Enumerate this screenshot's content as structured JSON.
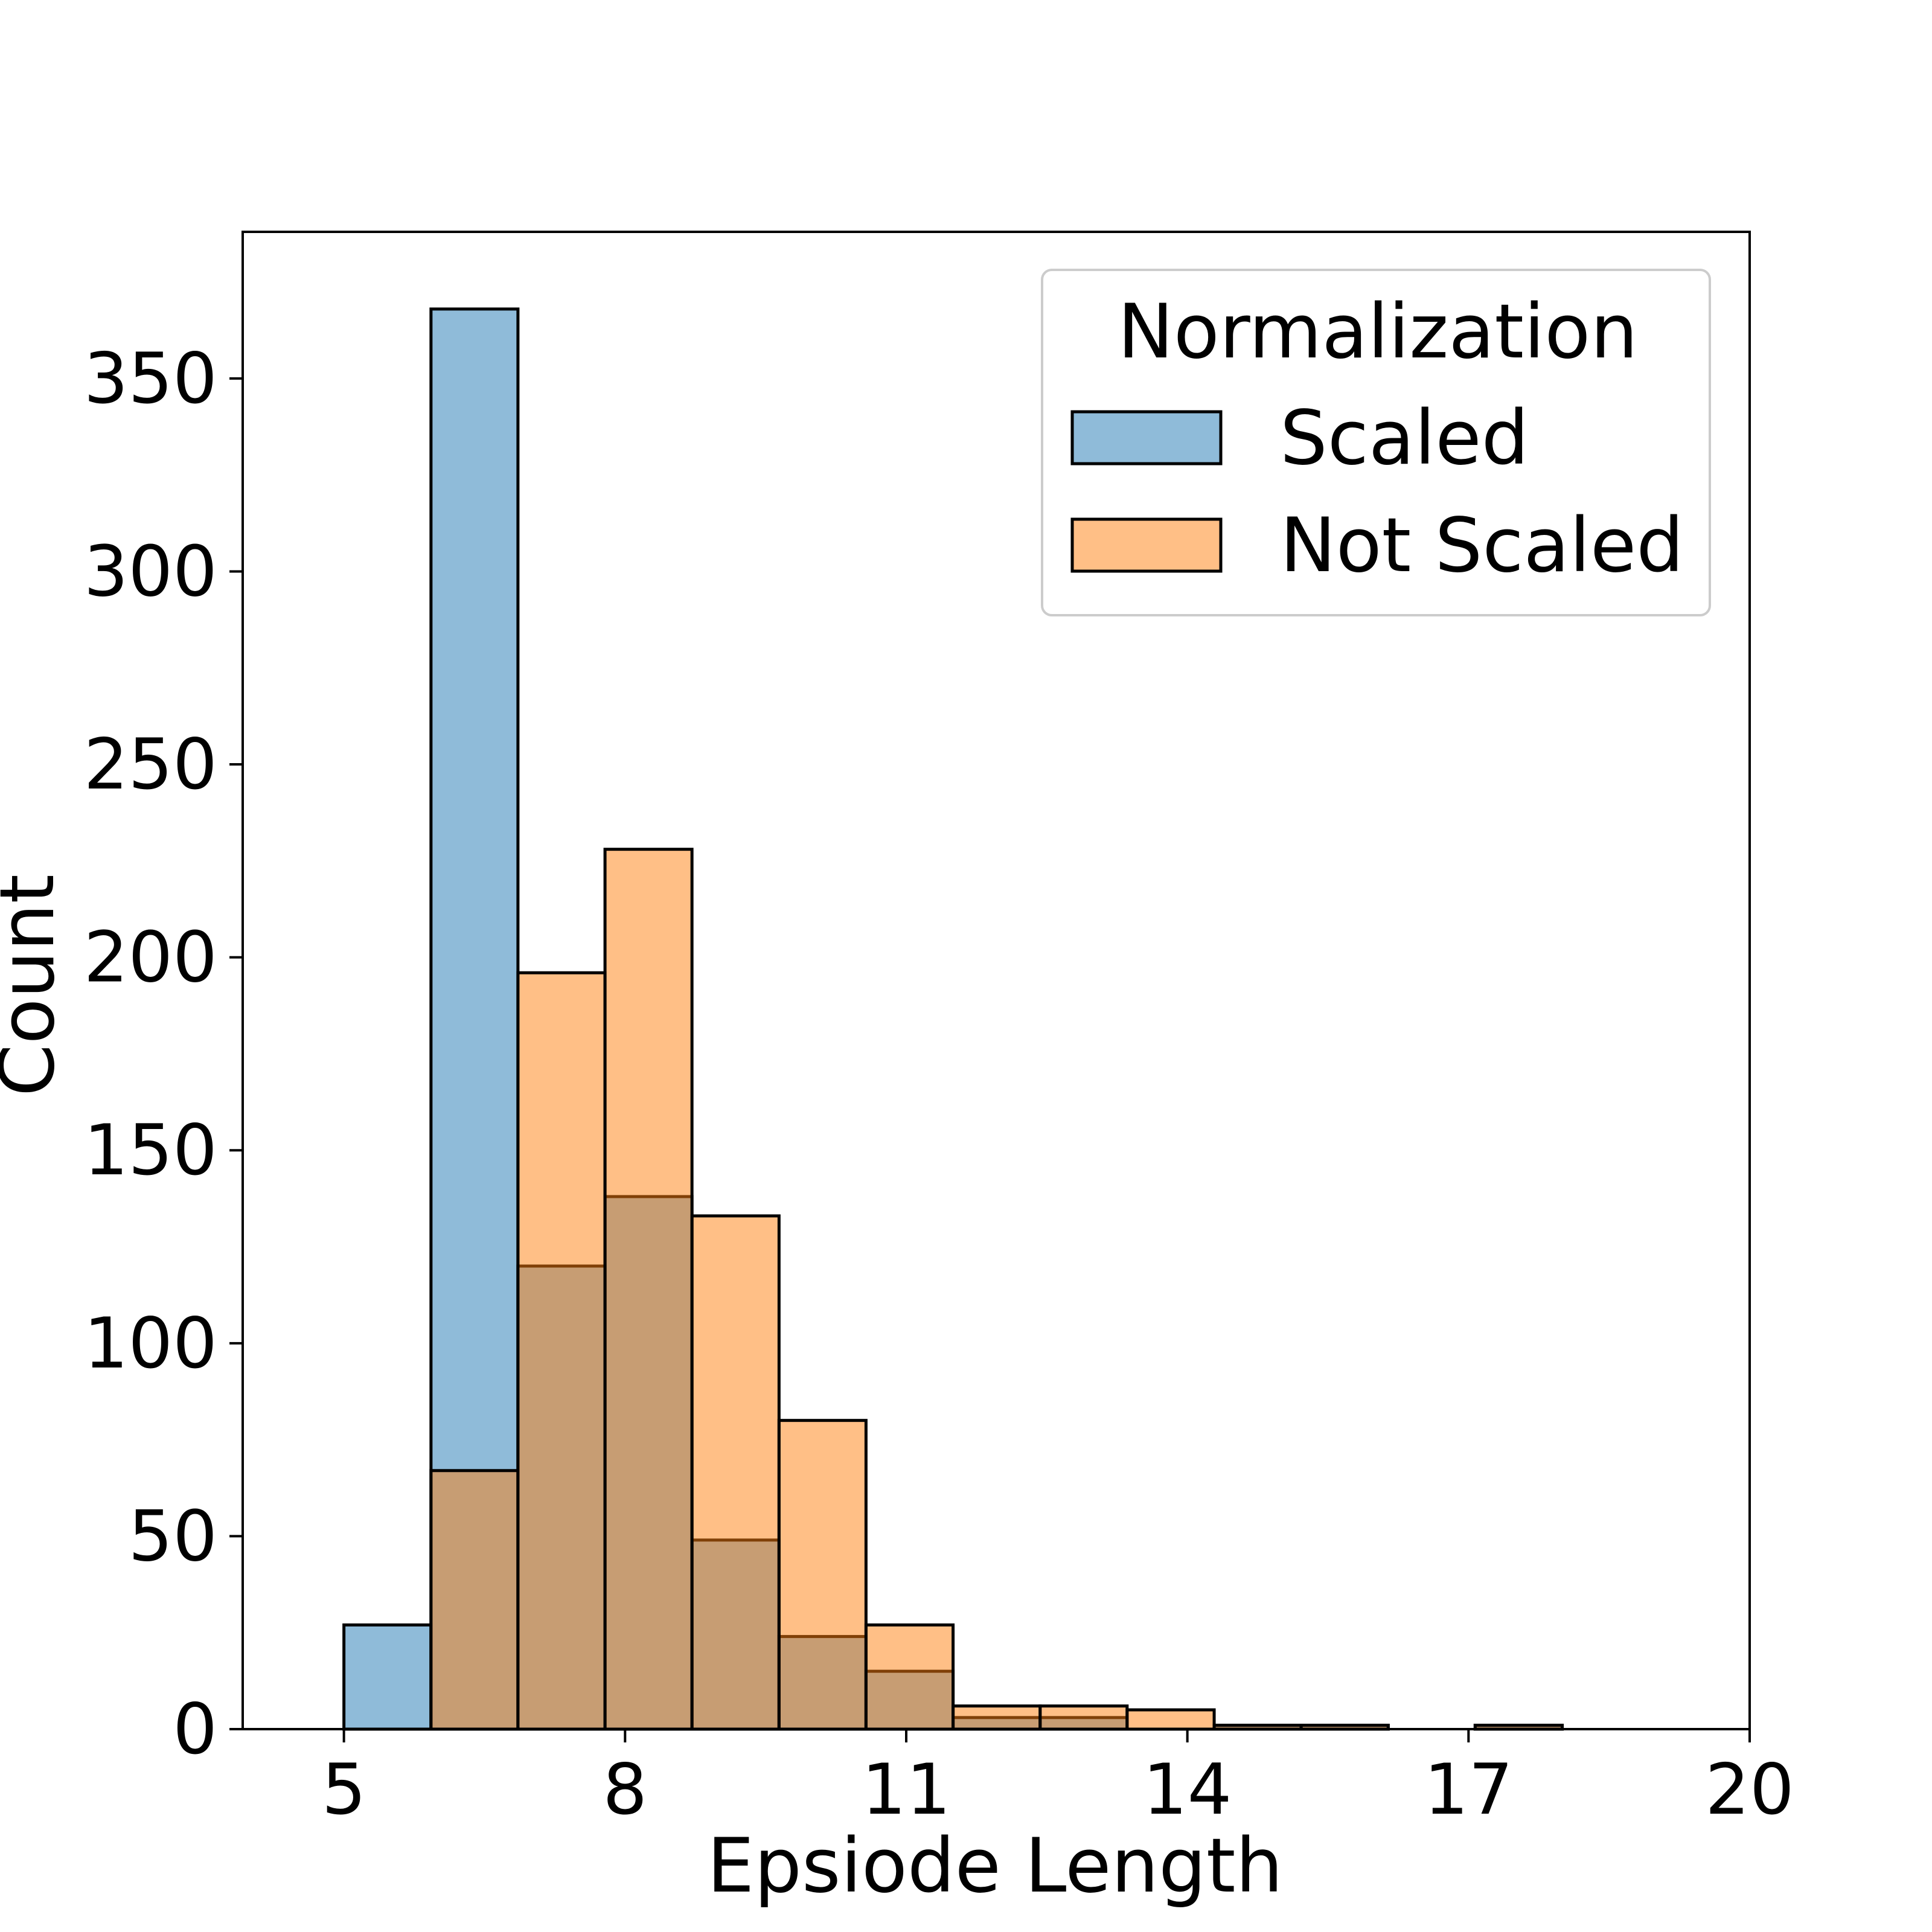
{
  "chart_data": {
    "type": "histogram",
    "xlabel": "Epsiode Length",
    "ylabel": "Count",
    "xlim": [
      3.92,
      20
    ],
    "ylim": [
      0,
      388
    ],
    "xticks": [
      5,
      8,
      11,
      14,
      17,
      20
    ],
    "yticks": [
      0,
      50,
      100,
      150,
      200,
      250,
      300,
      350
    ],
    "bin_edges": [
      5,
      5.929,
      6.857,
      7.786,
      8.714,
      9.643,
      10.571,
      11.5,
      12.429,
      13.357,
      14.286,
      15.214,
      16.143,
      17.071,
      18.0
    ],
    "series": [
      {
        "name": "Scaled",
        "color": "#1f77b4",
        "fill_opacity": 0.5,
        "values": [
          27,
          368,
          120,
          138,
          49,
          24,
          15,
          3,
          3,
          0,
          1,
          1,
          0,
          1
        ]
      },
      {
        "name": "Not Scaled",
        "color": "#ff7f0e",
        "fill_opacity": 0.5,
        "values": [
          0,
          67,
          196,
          228,
          133,
          80,
          27,
          6,
          6,
          5,
          1,
          1,
          0,
          1
        ]
      }
    ],
    "legend": {
      "title": "Normalization",
      "position": "top-right"
    },
    "grid": false
  }
}
